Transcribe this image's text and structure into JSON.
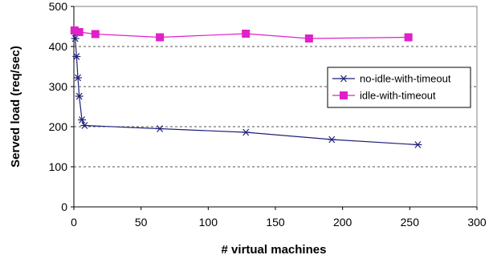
{
  "chart_data": {
    "type": "line",
    "xlabel": "# virtual machines",
    "ylabel": "Served load (req/sec)",
    "xlim": [
      0,
      300
    ],
    "ylim": [
      0,
      500
    ],
    "x_ticks": [
      "0",
      "50",
      "100",
      "150",
      "200",
      "250",
      "300"
    ],
    "y_ticks": [
      "0",
      "100",
      "200",
      "300",
      "400",
      "500"
    ],
    "grid": "horizontal-dashed",
    "legend_position": "right",
    "series": [
      {
        "name": "no-idle-with-timeout",
        "color": "#1f1f7a",
        "marker": "asterisk",
        "x": [
          0.5,
          1,
          2,
          3,
          4,
          6,
          8,
          64,
          128,
          192,
          256
        ],
        "y": [
          440,
          420,
          375,
          322,
          276,
          217,
          203,
          195,
          186,
          168,
          155
        ]
      },
      {
        "name": "idle-with-timeout",
        "color": "#e020c8",
        "marker": "square",
        "x": [
          0.5,
          4,
          16,
          64,
          128,
          175,
          249
        ],
        "y": [
          440,
          436,
          431,
          423,
          432,
          420,
          423
        ]
      }
    ]
  }
}
